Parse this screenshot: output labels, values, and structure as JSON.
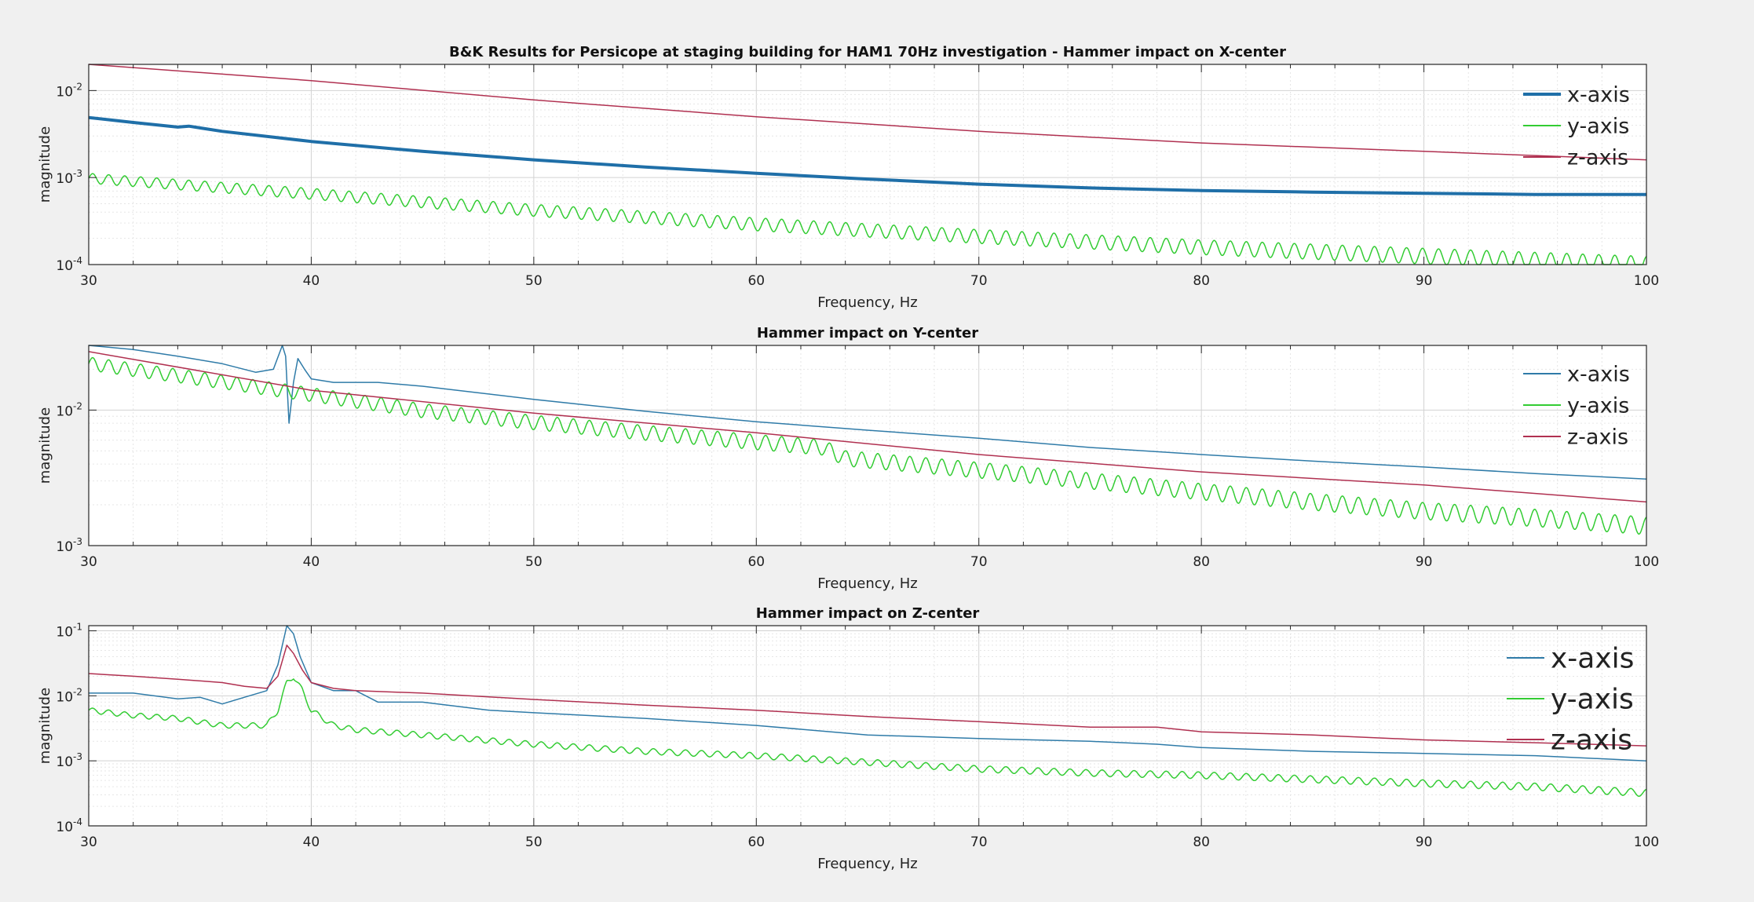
{
  "figure": {
    "background": "#f0f0f0"
  },
  "chart_data": [
    {
      "type": "line",
      "title": "B&K Results for Persicope at staging building for HAM1 70Hz investigation - Hammer impact on X-center",
      "xlabel": "Frequency, Hz",
      "ylabel": "magnitude",
      "xlim": [
        30,
        100
      ],
      "ylim": [
        0.0001,
        0.02
      ],
      "yscale": "log",
      "x_ticks": [
        "30",
        "40",
        "50",
        "60",
        "70",
        "80",
        "90",
        "100"
      ],
      "y_ticks": [
        {
          "value": 0.0001,
          "base": "10",
          "exp": "-4"
        },
        {
          "value": 0.001,
          "base": "10",
          "exp": "-3"
        },
        {
          "value": 0.01,
          "base": "10",
          "exp": "-2"
        }
      ],
      "grid": "major and minor",
      "legend": {
        "position": "top-right",
        "size": "medium"
      },
      "series": [
        {
          "name": "x-axis",
          "color": "#1f6fa8",
          "width": 4,
          "x": [
            30,
            32,
            34,
            34.5,
            36,
            40,
            45,
            50,
            55,
            60,
            65,
            70,
            75,
            80,
            85,
            90,
            95,
            100
          ],
          "y": [
            0.0049,
            0.0043,
            0.0038,
            0.0039,
            0.0034,
            0.0026,
            0.002,
            0.0016,
            0.00132,
            0.00112,
            0.00096,
            0.00084,
            0.00076,
            0.00071,
            0.00068,
            0.00066,
            0.00064,
            0.00064
          ]
        },
        {
          "name": "y-axis",
          "color": "#33cc33",
          "width": 1.5,
          "x": [
            30,
            40,
            50,
            60,
            70,
            80,
            90,
            100
          ],
          "y": [
            0.00098,
            0.00065,
            0.00042,
            0.00029,
            0.00021,
            0.000158,
            0.000125,
            0.0001
          ],
          "ripple": {
            "period_hz": 0.72,
            "ratio": [
              1.3,
              1.55
            ]
          }
        },
        {
          "name": "z-axis",
          "color": "#b03050",
          "width": 1.5,
          "x": [
            30,
            40,
            50,
            60,
            70,
            80,
            90,
            100
          ],
          "y": [
            0.022,
            0.013,
            0.0078,
            0.005,
            0.0034,
            0.0025,
            0.002,
            0.0016
          ]
        }
      ]
    },
    {
      "type": "line",
      "title": "Hammer impact on Y-center",
      "xlabel": "Frequency, Hz",
      "ylabel": "magnitude",
      "xlim": [
        30,
        100
      ],
      "ylim": [
        0.001,
        0.03
      ],
      "yscale": "log",
      "x_ticks": [
        "30",
        "40",
        "50",
        "60",
        "70",
        "80",
        "90",
        "100"
      ],
      "y_ticks": [
        {
          "value": 0.001,
          "base": "10",
          "exp": "-3"
        },
        {
          "value": 0.01,
          "base": "10",
          "exp": "-2"
        }
      ],
      "grid": "major and minor",
      "legend": {
        "position": "top-right",
        "size": "medium"
      },
      "series": [
        {
          "name": "x-axis",
          "color": "#2f7ba8",
          "width": 1.5,
          "x": [
            30,
            32,
            34,
            36,
            37.5,
            38.3,
            38.7,
            38.85,
            39,
            39.2,
            39.4,
            39.7,
            40,
            41,
            43,
            45,
            50,
            55,
            60,
            65,
            70,
            75,
            80,
            85,
            90,
            95,
            100
          ],
          "y": [
            0.03,
            0.028,
            0.025,
            0.022,
            0.019,
            0.02,
            0.03,
            0.025,
            0.008,
            0.016,
            0.024,
            0.02,
            0.017,
            0.016,
            0.016,
            0.015,
            0.012,
            0.0098,
            0.0082,
            0.0071,
            0.0062,
            0.0053,
            0.0047,
            0.0042,
            0.0038,
            0.0034,
            0.0031
          ]
        },
        {
          "name": "y-axis",
          "color": "#33cc33",
          "width": 1.5,
          "x": [
            30,
            35,
            40,
            45,
            50,
            55,
            60,
            63,
            64,
            70,
            75,
            80,
            85,
            90,
            95,
            100
          ],
          "y": [
            0.022,
            0.017,
            0.013,
            0.0099,
            0.0081,
            0.0068,
            0.0058,
            0.0053,
            0.0044,
            0.0036,
            0.003,
            0.0025,
            0.0021,
            0.0018,
            0.0016,
            0.0014
          ],
          "ripple": {
            "period_hz": 0.72,
            "ratio": [
              1.25,
              1.35
            ]
          }
        },
        {
          "name": "z-axis",
          "color": "#b03050",
          "width": 1.5,
          "x": [
            30,
            40,
            50,
            60,
            70,
            80,
            90,
            100
          ],
          "y": [
            0.027,
            0.014,
            0.0095,
            0.0068,
            0.0047,
            0.0035,
            0.0028,
            0.0021
          ]
        }
      ]
    },
    {
      "type": "line",
      "title": "Hammer impact on Z-center",
      "xlabel": "Frequency, Hz",
      "ylabel": "magnitude",
      "xlim": [
        30,
        100
      ],
      "ylim": [
        0.0001,
        0.12
      ],
      "yscale": "log",
      "x_ticks": [
        "30",
        "40",
        "50",
        "60",
        "70",
        "80",
        "90",
        "100"
      ],
      "y_ticks": [
        {
          "value": 0.0001,
          "base": "10",
          "exp": "-4"
        },
        {
          "value": 0.001,
          "base": "10",
          "exp": "-3"
        },
        {
          "value": 0.01,
          "base": "10",
          "exp": "-2"
        },
        {
          "value": 0.1,
          "base": "10",
          "exp": "-1"
        }
      ],
      "grid": "major and minor",
      "legend": {
        "position": "top-right",
        "size": "large"
      },
      "series": [
        {
          "name": "x-axis",
          "color": "#2f7ba8",
          "width": 1.5,
          "x": [
            30,
            32,
            34,
            35,
            36,
            37,
            38,
            38.5,
            38.9,
            39.2,
            39.5,
            40,
            41,
            42,
            43,
            45,
            48,
            50,
            55,
            60,
            65,
            70,
            75,
            78,
            80,
            85,
            90,
            95,
            100
          ],
          "y": [
            0.011,
            0.011,
            0.009,
            0.0095,
            0.0075,
            0.0095,
            0.012,
            0.03,
            0.12,
            0.09,
            0.04,
            0.016,
            0.012,
            0.012,
            0.008,
            0.008,
            0.006,
            0.0055,
            0.0045,
            0.0035,
            0.0025,
            0.0022,
            0.002,
            0.0018,
            0.0016,
            0.0014,
            0.0013,
            0.0012,
            0.001
          ]
        },
        {
          "name": "y-axis",
          "color": "#33cc33",
          "width": 1.5,
          "x": [
            30,
            32,
            34,
            36,
            37,
            38,
            38.5,
            38.9,
            39.2,
            39.6,
            40,
            41,
            42,
            45,
            50,
            55,
            60,
            65,
            70,
            75,
            80,
            85,
            90,
            95,
            100
          ],
          "y": [
            0.006,
            0.005,
            0.0045,
            0.0035,
            0.0035,
            0.0035,
            0.006,
            0.016,
            0.02,
            0.012,
            0.006,
            0.0035,
            0.003,
            0.0025,
            0.0018,
            0.0014,
            0.0012,
            0.00095,
            0.00075,
            0.00065,
            0.0006,
            0.00052,
            0.00045,
            0.0004,
            0.00032
          ],
          "ripple": {
            "period_hz": 0.72,
            "ratio": [
              1.2,
              1.3
            ]
          }
        },
        {
          "name": "z-axis",
          "color": "#b03050",
          "width": 1.5,
          "x": [
            30,
            32,
            34,
            36,
            37,
            38,
            38.5,
            38.9,
            39.2,
            39.6,
            40,
            41,
            42,
            45,
            50,
            55,
            60,
            65,
            70,
            75,
            78,
            80,
            85,
            90,
            95,
            100
          ],
          "y": [
            0.022,
            0.02,
            0.018,
            0.016,
            0.014,
            0.013,
            0.02,
            0.06,
            0.045,
            0.025,
            0.016,
            0.013,
            0.012,
            0.011,
            0.0088,
            0.0072,
            0.006,
            0.0048,
            0.004,
            0.0033,
            0.0033,
            0.0028,
            0.0025,
            0.0021,
            0.0019,
            0.0017
          ]
        }
      ]
    }
  ]
}
